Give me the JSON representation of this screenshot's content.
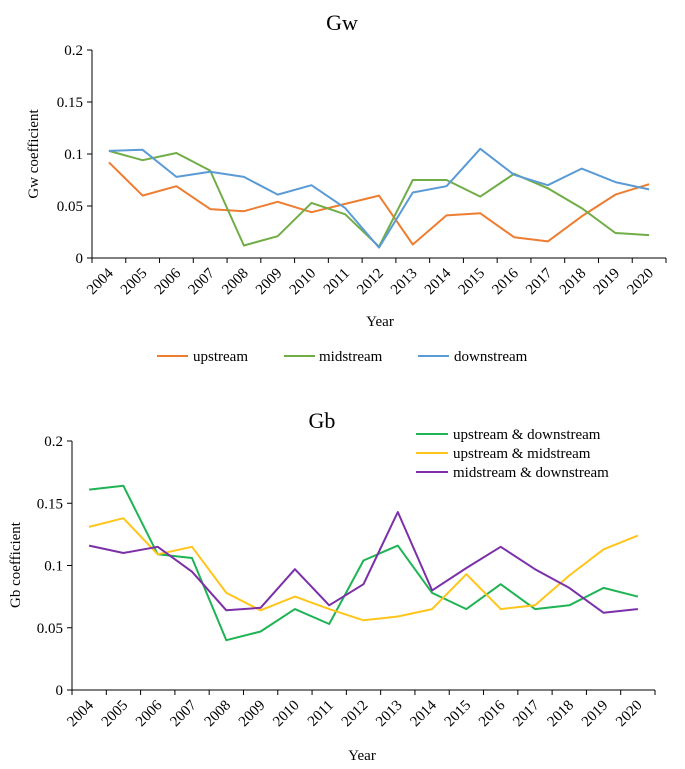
{
  "chart_data": [
    {
      "type": "line",
      "title": "Gw",
      "xlabel": "Year",
      "ylabel": "Gw coefficient",
      "ylim": [
        0,
        0.2
      ],
      "yticks": [
        "0",
        "0.05",
        "0.1",
        "0.15",
        "0.2"
      ],
      "grid": false,
      "legend": "bottom",
      "categories": [
        "2004",
        "2005",
        "2006",
        "2007",
        "2008",
        "2009",
        "2010",
        "2011",
        "2012",
        "2013",
        "2014",
        "2015",
        "2016",
        "2017",
        "2018",
        "2019",
        "2020"
      ],
      "series": [
        {
          "name": "upstream",
          "color": "#ED7D31",
          "values": [
            0.092,
            0.06,
            0.069,
            0.047,
            0.045,
            0.054,
            0.044,
            0.052,
            0.06,
            0.013,
            0.041,
            0.043,
            0.02,
            0.016,
            0.04,
            0.061,
            0.071
          ]
        },
        {
          "name": "midstream",
          "color": "#70AD47",
          "values": [
            0.103,
            0.094,
            0.101,
            0.084,
            0.012,
            0.021,
            0.053,
            0.042,
            0.011,
            0.075,
            0.075,
            0.059,
            0.081,
            0.067,
            0.048,
            0.024,
            0.022
          ]
        },
        {
          "name": "downstream",
          "color": "#5B9BD5",
          "values": [
            0.103,
            0.104,
            0.078,
            0.083,
            0.078,
            0.061,
            0.07,
            0.048,
            0.01,
            0.063,
            0.069,
            0.105,
            0.08,
            0.07,
            0.086,
            0.073,
            0.066
          ]
        }
      ]
    },
    {
      "type": "line",
      "title": "Gb",
      "xlabel": "Year",
      "ylabel": "Gb coefficient",
      "ylim": [
        0,
        0.2
      ],
      "yticks": [
        "0",
        "0.05",
        "0.1",
        "0.15",
        "0.2"
      ],
      "grid": false,
      "legend": "top-right",
      "categories": [
        "2004",
        "2005",
        "2006",
        "2007",
        "2008",
        "2009",
        "2010",
        "2011",
        "2012",
        "2013",
        "2014",
        "2015",
        "2016",
        "2017",
        "2018",
        "2019",
        "2020"
      ],
      "series": [
        {
          "name": "upstream & downstream",
          "color": "#1EB454",
          "values": [
            0.161,
            0.164,
            0.109,
            0.106,
            0.04,
            0.047,
            0.065,
            0.053,
            0.104,
            0.116,
            0.078,
            0.065,
            0.085,
            0.065,
            0.068,
            0.082,
            0.075
          ]
        },
        {
          "name": "upstream & midstream",
          "color": "#FFC51A",
          "values": [
            0.131,
            0.138,
            0.109,
            0.115,
            0.078,
            0.064,
            0.075,
            0.065,
            0.056,
            0.059,
            0.065,
            0.093,
            0.065,
            0.068,
            0.092,
            0.113,
            0.124
          ]
        },
        {
          "name": "midstream & downstream",
          "color": "#7B2FA8",
          "values": [
            0.116,
            0.11,
            0.115,
            0.095,
            0.064,
            0.066,
            0.097,
            0.068,
            0.085,
            0.143,
            0.08,
            0.098,
            0.115,
            0.097,
            0.082,
            0.062,
            0.065
          ]
        }
      ]
    }
  ]
}
